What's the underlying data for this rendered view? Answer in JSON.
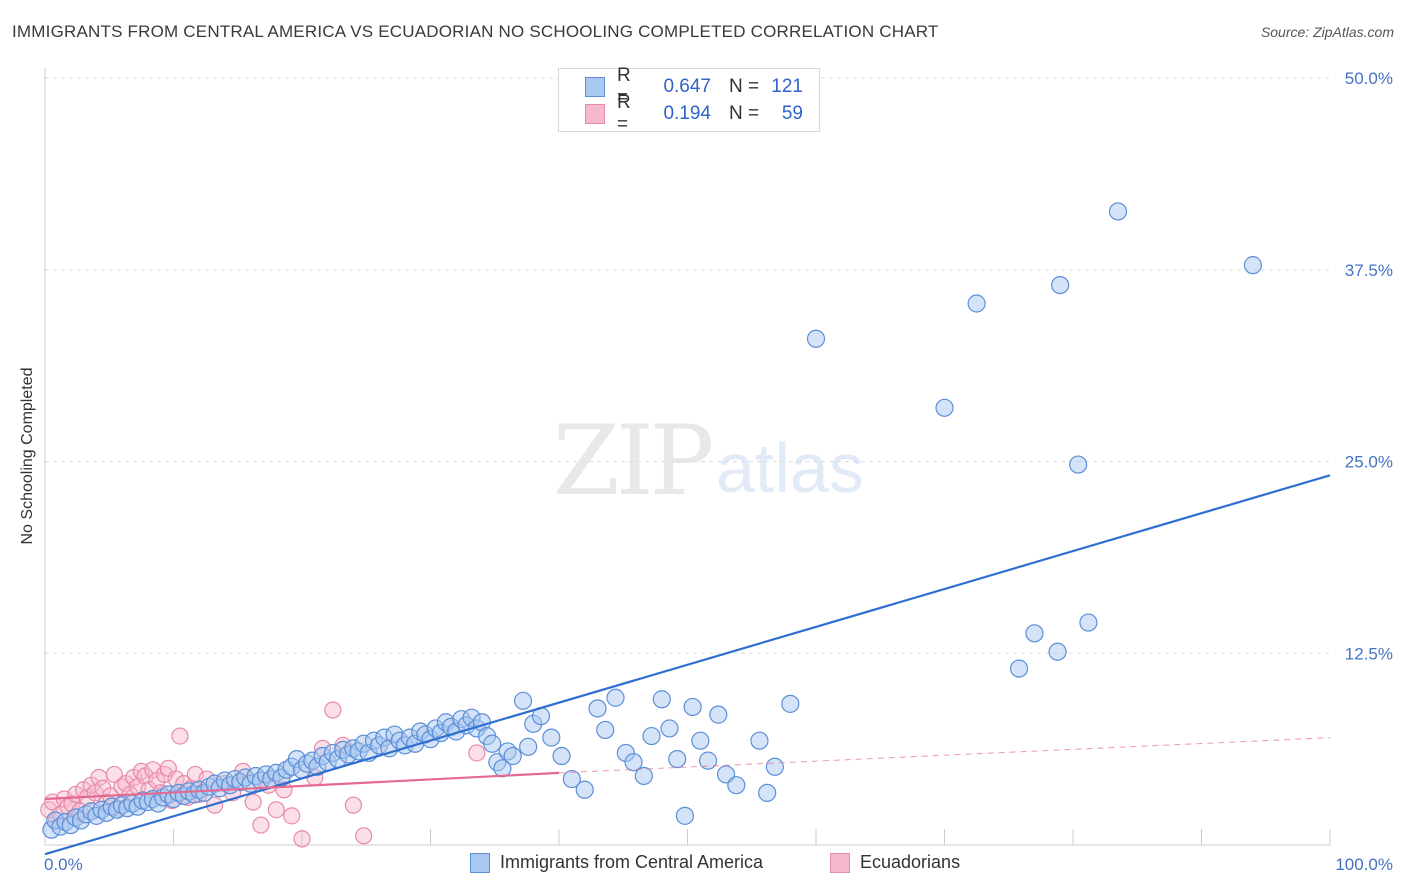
{
  "header": {
    "title": "IMMIGRANTS FROM CENTRAL AMERICA VS ECUADORIAN NO SCHOOLING COMPLETED CORRELATION CHART",
    "source": "Source: ZipAtlas.com"
  },
  "watermark": {
    "part1": "ZIP",
    "part2": "atlas"
  },
  "legend": {
    "rows": [
      {
        "r_label": "R =",
        "r_value": "0.647",
        "n_label": "N =",
        "n_value": "121"
      },
      {
        "r_label": "R =",
        "r_value": "0.194",
        "n_label": "N =",
        "n_value": "59"
      }
    ]
  },
  "bottom_legend": {
    "series1": "Immigrants from Central America",
    "series2": "Ecuadorians"
  },
  "colors": {
    "blue_fill": "#a9c8f0",
    "blue_stroke": "#5b8fd8",
    "blue_line": "#2f6fd0",
    "pink_fill": "#f6b8cb",
    "pink_stroke": "#e98aa8",
    "pink_line": "#e56a93",
    "grid": "#dddddd",
    "tick_text": "#4472c4"
  },
  "chart_data": {
    "type": "scatter",
    "title": "IMMIGRANTS FROM CENTRAL AMERICA VS ECUADORIAN NO SCHOOLING COMPLETED CORRELATION CHART",
    "xlabel": "",
    "ylabel": "No Schooling Completed",
    "xlim": [
      0,
      100
    ],
    "ylim": [
      0,
      50
    ],
    "x_tick_labels": [
      "0.0%",
      "100.0%"
    ],
    "y_ticks": [
      12.5,
      25.0,
      37.5,
      50.0
    ],
    "y_tick_labels": [
      "12.5%",
      "25.0%",
      "37.5%",
      "50.0%"
    ],
    "grid": true,
    "legend_placement": "top-center",
    "series": [
      {
        "name": "Immigrants from Central America",
        "r": 0.647,
        "n": 121,
        "trend": {
          "x": [
            0,
            100
          ],
          "y": [
            -0.6,
            24.1
          ],
          "style": "solid"
        },
        "points": [
          [
            0.5,
            1.0
          ],
          [
            0.8,
            1.6
          ],
          [
            1.2,
            1.2
          ],
          [
            1.6,
            1.5
          ],
          [
            2.0,
            1.3
          ],
          [
            2.4,
            1.8
          ],
          [
            2.8,
            1.6
          ],
          [
            3.2,
            2.0
          ],
          [
            3.6,
            2.2
          ],
          [
            4.0,
            1.9
          ],
          [
            4.4,
            2.3
          ],
          [
            4.8,
            2.1
          ],
          [
            5.2,
            2.5
          ],
          [
            5.6,
            2.3
          ],
          [
            6.0,
            2.6
          ],
          [
            6.4,
            2.4
          ],
          [
            6.8,
            2.7
          ],
          [
            7.2,
            2.5
          ],
          [
            7.6,
            2.9
          ],
          [
            8.0,
            2.8
          ],
          [
            8.4,
            3.0
          ],
          [
            8.8,
            2.7
          ],
          [
            9.2,
            3.1
          ],
          [
            9.6,
            3.3
          ],
          [
            10.0,
            3.0
          ],
          [
            10.4,
            3.4
          ],
          [
            10.8,
            3.2
          ],
          [
            11.2,
            3.5
          ],
          [
            11.6,
            3.3
          ],
          [
            12.0,
            3.6
          ],
          [
            12.4,
            3.4
          ],
          [
            12.8,
            3.8
          ],
          [
            13.2,
            4.0
          ],
          [
            13.6,
            3.7
          ],
          [
            14.0,
            4.2
          ],
          [
            14.4,
            3.9
          ],
          [
            14.8,
            4.3
          ],
          [
            15.2,
            4.1
          ],
          [
            15.6,
            4.4
          ],
          [
            16.0,
            4.0
          ],
          [
            16.4,
            4.5
          ],
          [
            16.8,
            4.2
          ],
          [
            17.2,
            4.6
          ],
          [
            17.6,
            4.3
          ],
          [
            18.0,
            4.7
          ],
          [
            18.4,
            4.4
          ],
          [
            18.8,
            4.9
          ],
          [
            19.2,
            5.1
          ],
          [
            19.6,
            5.6
          ],
          [
            20.0,
            4.9
          ],
          [
            20.4,
            5.3
          ],
          [
            20.8,
            5.5
          ],
          [
            21.2,
            5.1
          ],
          [
            21.6,
            5.8
          ],
          [
            22.0,
            5.4
          ],
          [
            22.4,
            6.0
          ],
          [
            22.8,
            5.6
          ],
          [
            23.2,
            6.2
          ],
          [
            23.6,
            5.9
          ],
          [
            24.0,
            6.3
          ],
          [
            24.4,
            6.1
          ],
          [
            24.8,
            6.6
          ],
          [
            25.2,
            6.0
          ],
          [
            25.6,
            6.8
          ],
          [
            26.0,
            6.5
          ],
          [
            26.4,
            7.0
          ],
          [
            26.8,
            6.3
          ],
          [
            27.2,
            7.2
          ],
          [
            27.6,
            6.8
          ],
          [
            28.0,
            6.5
          ],
          [
            28.4,
            7.0
          ],
          [
            28.8,
            6.6
          ],
          [
            29.2,
            7.4
          ],
          [
            29.6,
            7.2
          ],
          [
            30.0,
            6.9
          ],
          [
            30.4,
            7.6
          ],
          [
            30.8,
            7.3
          ],
          [
            31.2,
            8.0
          ],
          [
            31.6,
            7.7
          ],
          [
            32.0,
            7.4
          ],
          [
            32.4,
            8.2
          ],
          [
            32.8,
            7.8
          ],
          [
            33.2,
            8.3
          ],
          [
            33.6,
            7.6
          ],
          [
            34.0,
            8.0
          ],
          [
            34.4,
            7.1
          ],
          [
            34.8,
            6.6
          ],
          [
            35.2,
            5.4
          ],
          [
            35.6,
            5.0
          ],
          [
            36.0,
            6.1
          ],
          [
            36.4,
            5.8
          ],
          [
            37.2,
            9.4
          ],
          [
            37.6,
            6.4
          ],
          [
            38.0,
            7.9
          ],
          [
            38.6,
            8.4
          ],
          [
            39.4,
            7.0
          ],
          [
            40.2,
            5.8
          ],
          [
            41.0,
            4.3
          ],
          [
            42.0,
            3.6
          ],
          [
            43.0,
            8.9
          ],
          [
            43.6,
            7.5
          ],
          [
            44.4,
            9.6
          ],
          [
            45.2,
            6.0
          ],
          [
            45.8,
            5.4
          ],
          [
            46.6,
            4.5
          ],
          [
            47.2,
            7.1
          ],
          [
            48.0,
            9.5
          ],
          [
            48.6,
            7.6
          ],
          [
            49.2,
            5.6
          ],
          [
            49.8,
            1.9
          ],
          [
            50.4,
            9.0
          ],
          [
            51.0,
            6.8
          ],
          [
            51.6,
            5.5
          ],
          [
            52.4,
            8.5
          ],
          [
            53.0,
            4.6
          ],
          [
            53.8,
            3.9
          ],
          [
            55.6,
            6.8
          ],
          [
            56.2,
            3.4
          ],
          [
            58.0,
            9.2
          ],
          [
            60.0,
            33.0
          ],
          [
            70.0,
            28.5
          ],
          [
            72.5,
            35.3
          ],
          [
            75.8,
            11.5
          ],
          [
            77.0,
            13.8
          ],
          [
            78.8,
            12.6
          ],
          [
            79.0,
            36.5
          ],
          [
            80.4,
            24.8
          ],
          [
            81.2,
            14.5
          ],
          [
            83.5,
            41.3
          ],
          [
            94.0,
            37.8
          ],
          [
            56.8,
            5.1
          ]
        ]
      },
      {
        "name": "Ecuadorians",
        "r": 0.194,
        "n": 59,
        "trend": {
          "x": [
            0,
            40,
            100
          ],
          "y": [
            3.0,
            4.7,
            7.0
          ],
          "solid_until_x": 40,
          "style": "solid-then-dashed"
        },
        "points": [
          [
            0.3,
            2.3
          ],
          [
            0.6,
            2.8
          ],
          [
            0.9,
            1.6
          ],
          [
            1.2,
            2.0
          ],
          [
            1.5,
            3.0
          ],
          [
            1.8,
            2.5
          ],
          [
            2.1,
            2.7
          ],
          [
            2.4,
            3.3
          ],
          [
            2.7,
            2.2
          ],
          [
            3.0,
            3.6
          ],
          [
            3.3,
            3.1
          ],
          [
            3.6,
            3.9
          ],
          [
            3.9,
            3.4
          ],
          [
            4.2,
            4.4
          ],
          [
            4.5,
            3.7
          ],
          [
            4.8,
            2.8
          ],
          [
            5.1,
            3.2
          ],
          [
            5.4,
            4.6
          ],
          [
            5.7,
            2.4
          ],
          [
            6.0,
            3.8
          ],
          [
            6.3,
            4.0
          ],
          [
            6.6,
            3.3
          ],
          [
            6.9,
            4.4
          ],
          [
            7.2,
            3.8
          ],
          [
            7.5,
            4.8
          ],
          [
            7.8,
            4.5
          ],
          [
            8.1,
            3.6
          ],
          [
            8.4,
            4.9
          ],
          [
            8.7,
            4.2
          ],
          [
            9.0,
            3.4
          ],
          [
            9.3,
            4.6
          ],
          [
            9.6,
            5.0
          ],
          [
            9.9,
            2.9
          ],
          [
            10.2,
            4.3
          ],
          [
            10.5,
            7.1
          ],
          [
            10.8,
            4.0
          ],
          [
            11.1,
            3.1
          ],
          [
            11.4,
            3.7
          ],
          [
            11.7,
            4.6
          ],
          [
            12.0,
            3.3
          ],
          [
            12.6,
            4.3
          ],
          [
            13.2,
            2.6
          ],
          [
            14.0,
            4.0
          ],
          [
            14.6,
            3.4
          ],
          [
            15.4,
            4.8
          ],
          [
            16.2,
            2.8
          ],
          [
            16.8,
            1.3
          ],
          [
            17.4,
            3.9
          ],
          [
            18.0,
            2.3
          ],
          [
            18.6,
            3.6
          ],
          [
            19.2,
            1.9
          ],
          [
            20.0,
            0.4
          ],
          [
            21.0,
            4.4
          ],
          [
            21.6,
            6.3
          ],
          [
            22.4,
            8.8
          ],
          [
            23.2,
            6.5
          ],
          [
            24.0,
            2.6
          ],
          [
            24.8,
            0.6
          ],
          [
            33.6,
            6.0
          ]
        ]
      }
    ]
  }
}
